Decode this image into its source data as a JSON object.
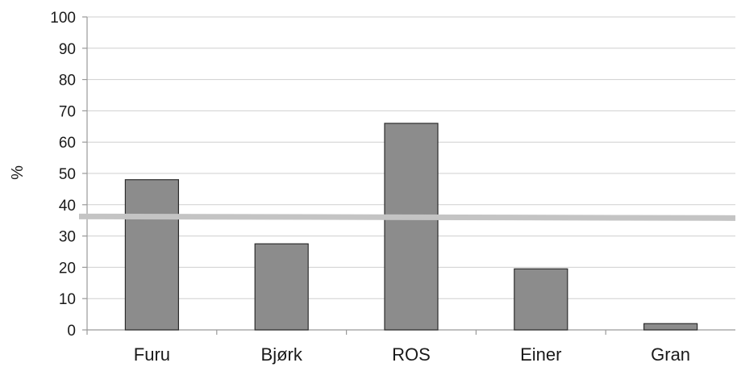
{
  "chart_data": {
    "type": "bar",
    "title": "",
    "xlabel": "",
    "ylabel": "%",
    "categories": [
      "Furu",
      "Bjørk",
      "ROS",
      "Einer",
      "Gran"
    ],
    "values": [
      48,
      27.5,
      66,
      19.5,
      2
    ],
    "ylim": [
      0,
      100
    ],
    "yticks": [
      0,
      10,
      20,
      30,
      40,
      50,
      60,
      70,
      80,
      90,
      100
    ],
    "grid": true,
    "legend": "none",
    "reference_line": {
      "value": 36
    },
    "colors": {
      "bar_fill": "#8c8c8c",
      "bar_edge": "#2c2c2c",
      "grid": "#cfcfcf",
      "reference_line": "#c4c4c4"
    }
  }
}
